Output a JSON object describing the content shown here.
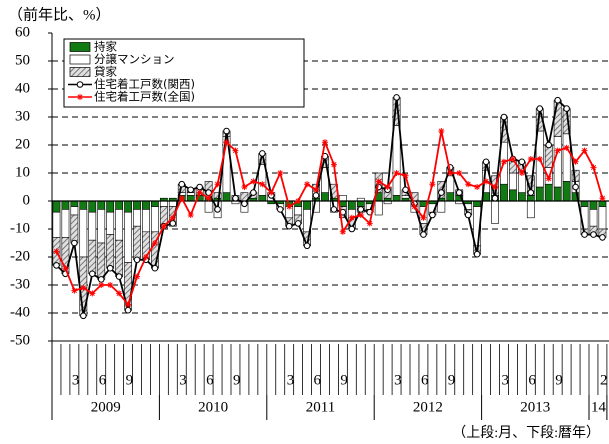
{
  "chart_data": {
    "type": "bar_line",
    "ylabel": "（前年比、%）",
    "note": "（上段:月、下段:暦年）",
    "categories": [
      null,
      null,
      "3",
      null,
      null,
      "6",
      null,
      null,
      "9",
      null,
      null,
      null,
      null,
      null,
      "3",
      null,
      null,
      "6",
      null,
      null,
      "9",
      null,
      null,
      null,
      null,
      null,
      "3",
      null,
      null,
      "6",
      null,
      null,
      "9",
      null,
      null,
      null,
      null,
      null,
      "3",
      null,
      null,
      "6",
      null,
      null,
      "9",
      null,
      null,
      null,
      null,
      null,
      "3",
      null,
      null,
      "6",
      null,
      null,
      "9",
      null,
      null,
      null,
      null,
      "2"
    ],
    "year_groups": [
      {
        "label": "2009",
        "months": 12
      },
      {
        "label": "2010",
        "months": 12
      },
      {
        "label": "2011",
        "months": 12
      },
      {
        "label": "2012",
        "months": 12
      },
      {
        "label": "2013",
        "months": 12
      },
      {
        "label": "14",
        "months": 2
      }
    ],
    "series": [
      {
        "name": "持家",
        "kind": "bar",
        "color": "#127a12",
        "values": [
          -4,
          -3,
          -2,
          -3,
          -4,
          -3,
          -4,
          -3,
          -4,
          -3,
          -3,
          -2,
          1,
          1,
          2,
          2,
          2,
          1,
          1,
          3,
          1,
          -1,
          1,
          2,
          -1,
          -1,
          -2,
          -2,
          -3,
          1,
          3,
          1,
          -2,
          -3,
          -2,
          -1,
          3,
          1,
          2,
          1,
          0,
          -2,
          -1,
          1,
          3,
          2,
          -1,
          -2,
          3,
          2,
          6,
          4,
          3,
          2,
          5,
          6,
          5,
          7,
          3,
          -2,
          -3,
          -2
        ]
      },
      {
        "name": "分譲マンション",
        "kind": "bar",
        "color": "#ffffff",
        "values": [
          -9,
          -10,
          -3,
          -17,
          -10,
          -12,
          -8,
          -11,
          -18,
          -6,
          -8,
          -9,
          -2,
          -2,
          1,
          1,
          0,
          -4,
          -6,
          20,
          -1,
          -3,
          0,
          11,
          3,
          -2,
          -4,
          -3,
          -8,
          -4,
          9,
          -4,
          2,
          -3,
          1,
          -2,
          -5,
          -1,
          25,
          1,
          -4,
          -6,
          -3,
          -4,
          6,
          -1,
          -2,
          -14,
          8,
          -8,
          15,
          6,
          7,
          -6,
          20,
          6,
          18,
          17,
          4,
          -8,
          -6,
          -8
        ]
      },
      {
        "name": "貸家",
        "kind": "bar",
        "color": "#9a9a9a",
        "pattern": "hatch",
        "values": [
          -10,
          -13,
          -10,
          -21,
          -12,
          -13,
          -12,
          -13,
          -17,
          -12,
          -10,
          -13,
          -8,
          -7,
          3,
          1,
          3,
          6,
          2,
          2,
          1,
          3,
          2,
          4,
          0,
          0,
          -3,
          -3,
          -5,
          5,
          4,
          5,
          -4,
          -4,
          -2,
          -1,
          7,
          4,
          10,
          2,
          3,
          -4,
          -1,
          6,
          3,
          2,
          -2,
          -3,
          3,
          7,
          9,
          5,
          4,
          7,
          8,
          8,
          13,
          9,
          4,
          -2,
          -3,
          -3
        ]
      },
      {
        "name": "住宅着工戸数(関西)",
        "kind": "line",
        "color": "#000000",
        "marker": "circle",
        "values": [
          -23,
          -26,
          -15,
          -41,
          -26,
          -28,
          -24,
          -27,
          -39,
          -21,
          -21,
          -24,
          -9,
          -8,
          6,
          4,
          5,
          3,
          -3,
          25,
          1,
          -1,
          3,
          17,
          2,
          -3,
          -9,
          -8,
          -16,
          2,
          16,
          -3,
          -4,
          -10,
          -3,
          -4,
          5,
          4,
          37,
          4,
          -1,
          -12,
          -5,
          3,
          12,
          3,
          -5,
          -19,
          14,
          1,
          30,
          15,
          14,
          3,
          33,
          20,
          36,
          33,
          5,
          -12,
          -12,
          -13
        ]
      },
      {
        "name": "住宅着工戸数(全国)",
        "kind": "line",
        "color": "#ff0000",
        "marker": "star",
        "values": [
          -18,
          -24,
          -32,
          -31,
          -33,
          -30,
          -30,
          -33,
          -37,
          -27,
          -20,
          -15,
          -9,
          -6,
          1,
          -5,
          3,
          1,
          6,
          21,
          18,
          5,
          7,
          6,
          3,
          10,
          -2,
          0,
          6,
          4,
          21,
          13,
          -11,
          -6,
          -5,
          -8,
          7,
          5,
          10,
          9,
          -2,
          -6,
          6,
          25,
          10,
          10,
          6,
          5,
          7,
          5,
          14,
          15,
          10,
          15,
          15,
          8,
          18,
          19,
          14,
          18,
          12,
          1
        ]
      }
    ],
    "ylim": [
      -50,
      60
    ],
    "yticks": [
      -50,
      -40,
      -30,
      -20,
      -10,
      0,
      10,
      20,
      30,
      40,
      50,
      60
    ],
    "grid": true
  }
}
